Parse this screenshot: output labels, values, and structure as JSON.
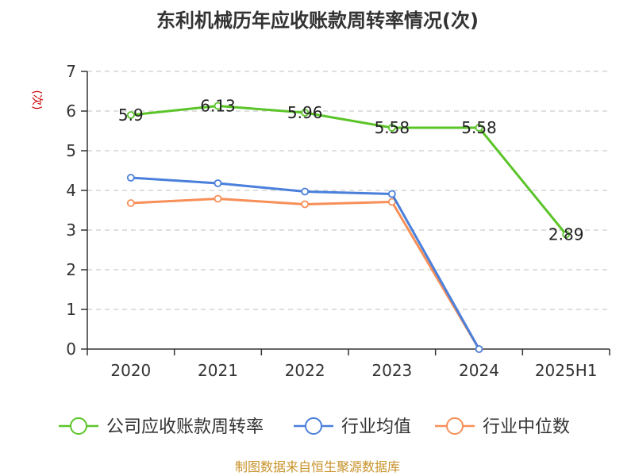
{
  "chart_data": {
    "type": "line",
    "title": "东利机械历年应收账款周转率情况(次)",
    "ylabel": "(次)",
    "xlabel": "",
    "categories": [
      "2020",
      "2021",
      "2022",
      "2023",
      "2024",
      "2025H1"
    ],
    "ylim": [
      0,
      7
    ],
    "yticks": [
      "0",
      "1",
      "2",
      "3",
      "4",
      "5",
      "6",
      "7"
    ],
    "grid": true,
    "legend_position": "bottom",
    "series": [
      {
        "name": "公司应收账款周转率",
        "color": "#5bc429",
        "values": [
          5.9,
          6.13,
          5.96,
          5.58,
          5.58,
          2.89
        ],
        "labels": [
          "5.9",
          "6.13",
          "5.96",
          "5.58",
          "5.58",
          "2.89"
        ]
      },
      {
        "name": "行业均值",
        "color": "#4a7fdb",
        "values": [
          4.32,
          4.18,
          3.97,
          3.91,
          0,
          null
        ]
      },
      {
        "name": "行业中位数",
        "color": "#f78f58",
        "values": [
          3.68,
          3.79,
          3.65,
          3.71,
          0,
          null
        ]
      }
    ],
    "source": "制图数据来自恒生聚源数据库",
    "colors": {
      "title": "#333333",
      "ylabel": "#cc0000",
      "source": "#c8922a",
      "grid": "#cccccc",
      "axis": "#333333"
    }
  }
}
